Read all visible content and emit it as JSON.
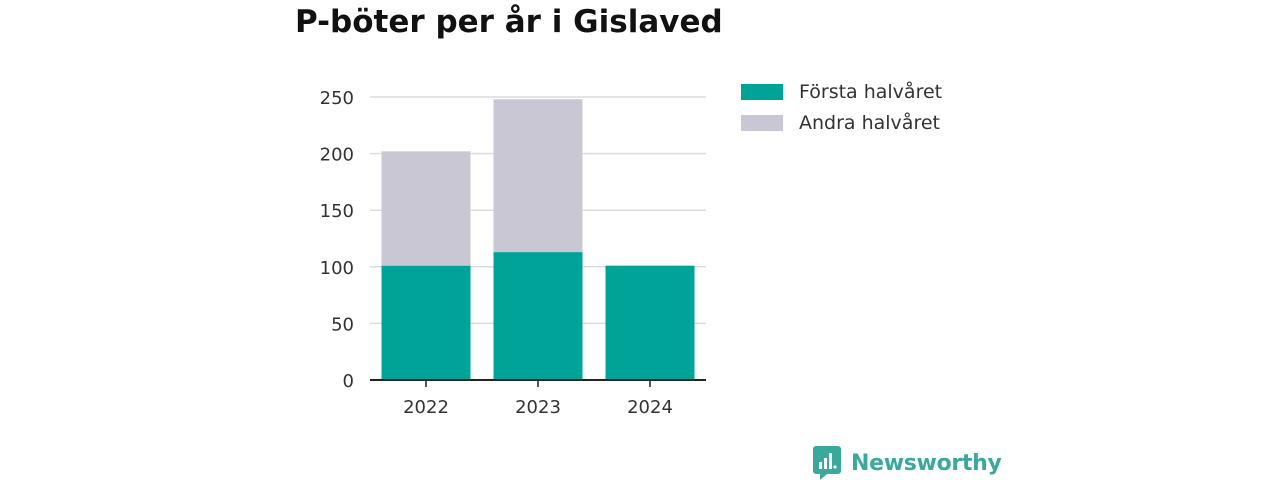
{
  "chart_data": {
    "type": "bar",
    "stacked": true,
    "title": "P-böter per år i Gislaved",
    "xlabel": "",
    "ylabel": "",
    "categories": [
      "2022",
      "2023",
      "2024"
    ],
    "series": [
      {
        "name": "Första halvåret",
        "values": [
          101,
          113,
          101
        ],
        "color": "#00a398"
      },
      {
        "name": "Andra halvåret",
        "values": [
          101,
          135,
          0
        ],
        "color": "#c8c7d3"
      }
    ],
    "ylim": [
      0,
      250
    ],
    "yticks": [
      0,
      50,
      100,
      150,
      200,
      250
    ],
    "grid": true,
    "legend_position": "right"
  },
  "brand": {
    "name": "Newsworthy",
    "color": "#3aa99b",
    "icon": "bar-chart-speech-bubble-icon"
  }
}
